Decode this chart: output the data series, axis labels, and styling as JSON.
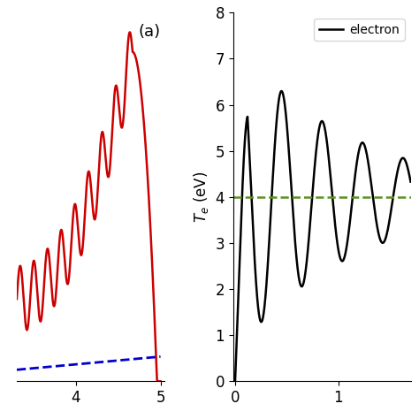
{
  "panel_a": {
    "label": "(a)",
    "red_line": {
      "color": "#cc0000",
      "style": "solid",
      "linewidth": 1.8
    },
    "blue_line": {
      "color": "#0000cc",
      "style": "dashed",
      "linewidth": 2.0
    },
    "xlim": [
      3.3,
      5.05
    ],
    "xticks": [
      4,
      5
    ],
    "yticks": []
  },
  "panel_b": {
    "ylabel": "$T_e$ (eV)",
    "ylim": [
      0,
      8
    ],
    "yticks": [
      0,
      1,
      2,
      3,
      4,
      5,
      6,
      7,
      8
    ],
    "xlim": [
      -0.02,
      1.7
    ],
    "xticks": [
      0,
      1
    ],
    "green_hline": {
      "y": 4.0,
      "color": "#5a9020",
      "style": "dashed",
      "linewidth": 1.8
    },
    "black_line": {
      "color": "#000000",
      "style": "solid",
      "linewidth": 1.8
    },
    "legend_label": "electron"
  },
  "background_color": "#ffffff"
}
